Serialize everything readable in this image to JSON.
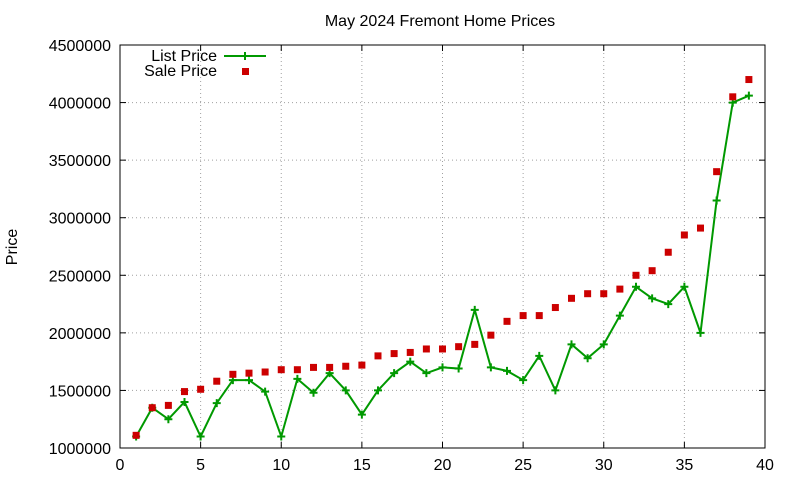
{
  "chart_data": {
    "type": "line",
    "title": "May 2024 Fremont Home Prices",
    "xlabel": "",
    "ylabel": "Price",
    "xlim": [
      0,
      40
    ],
    "ylim": [
      1000000,
      4500000
    ],
    "x_ticks": [
      0,
      5,
      10,
      15,
      20,
      25,
      30,
      35,
      40
    ],
    "y_ticks": [
      1000000,
      1500000,
      2000000,
      2500000,
      3000000,
      3500000,
      4000000,
      4500000
    ],
    "grid": true,
    "legend_position": "top-left",
    "series": [
      {
        "name": "List Price",
        "style": "line+plus",
        "color": "#009900",
        "x": [
          1,
          2,
          3,
          4,
          5,
          6,
          7,
          8,
          9,
          10,
          11,
          12,
          13,
          14,
          15,
          16,
          17,
          18,
          19,
          20,
          21,
          22,
          23,
          24,
          25,
          26,
          27,
          28,
          29,
          30,
          31,
          32,
          33,
          34,
          35,
          36,
          37,
          38,
          39
        ],
        "values": [
          1100000,
          1350000,
          1250000,
          1400000,
          1100000,
          1390000,
          1590000,
          1590000,
          1490000,
          1100000,
          1600000,
          1480000,
          1650000,
          1500000,
          1290000,
          1500000,
          1650000,
          1750000,
          1650000,
          1700000,
          1690000,
          2200000,
          1700000,
          1670000,
          1590000,
          1800000,
          1500000,
          1900000,
          1780000,
          1900000,
          2150000,
          2400000,
          2300000,
          2250000,
          2400000,
          2000000,
          3150000,
          4000000,
          4060000
        ]
      },
      {
        "name": "Sale Price",
        "style": "square",
        "color": "#cc0000",
        "x": [
          1,
          2,
          3,
          4,
          5,
          6,
          7,
          8,
          9,
          10,
          11,
          12,
          13,
          14,
          15,
          16,
          17,
          18,
          19,
          20,
          21,
          22,
          23,
          24,
          25,
          26,
          27,
          28,
          29,
          30,
          31,
          32,
          33,
          34,
          35,
          36,
          37,
          38,
          39
        ],
        "values": [
          1110000,
          1350000,
          1370000,
          1490000,
          1510000,
          1580000,
          1640000,
          1650000,
          1660000,
          1680000,
          1680000,
          1700000,
          1700000,
          1710000,
          1720000,
          1800000,
          1820000,
          1830000,
          1860000,
          1860000,
          1880000,
          1900000,
          1980000,
          2100000,
          2150000,
          2150000,
          2220000,
          2300000,
          2340000,
          2340000,
          2380000,
          2500000,
          2540000,
          2700000,
          2850000,
          2910000,
          3400000,
          4050000,
          4200000
        ]
      }
    ]
  }
}
